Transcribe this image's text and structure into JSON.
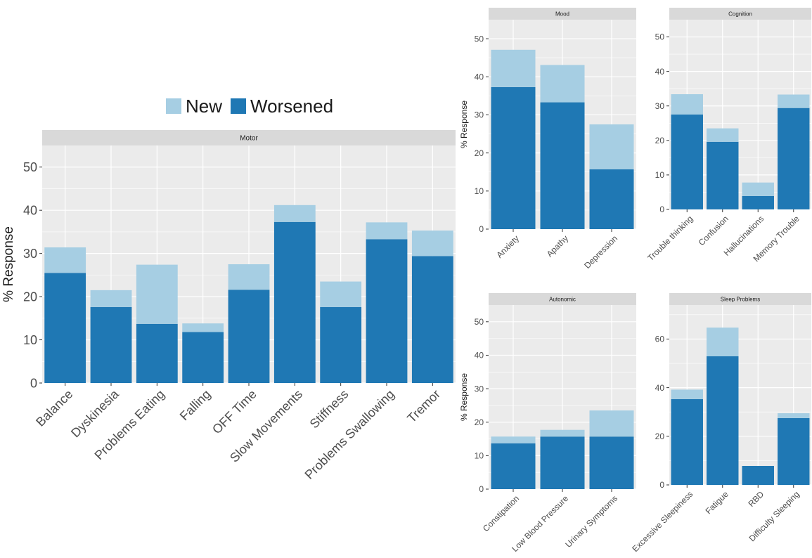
{
  "legend": {
    "items": [
      {
        "label": "New",
        "color": "#a6cee3"
      },
      {
        "label": "Worsened",
        "color": "#1f78b4"
      }
    ],
    "placement": "top-center above Motor panel"
  },
  "colors": {
    "new": "#a6cee3",
    "worsened": "#1f78b4",
    "panel_bg": "#ebebeb",
    "strip_bg": "#d9d9d9",
    "grid": "#ffffff",
    "text": "#4d4d4d"
  },
  "chart_data": [
    {
      "id": "motor",
      "type": "bar",
      "stacked": true,
      "facet_title": "Motor",
      "ylabel": "% Response",
      "ylim": [
        0,
        55
      ],
      "yticks": [
        0,
        10,
        20,
        30,
        40,
        50
      ],
      "grid": true,
      "categories": [
        "Balance",
        "Dyskinesia",
        "Problems Eating",
        "Falling",
        "OFF Time",
        "Slow Movements",
        "Stiffness",
        "Problems Swallowing",
        "Tremor"
      ],
      "series": [
        {
          "name": "Worsened",
          "values": [
            25.5,
            17.6,
            13.7,
            11.8,
            21.6,
            37.3,
            17.6,
            33.3,
            29.4
          ]
        },
        {
          "name": "New",
          "values": [
            5.9,
            3.9,
            13.7,
            2.0,
            5.9,
            3.9,
            5.9,
            3.9,
            5.9
          ]
        }
      ]
    },
    {
      "id": "mood",
      "type": "bar",
      "stacked": true,
      "facet_title": "Mood",
      "ylabel": "% Response",
      "ylim": [
        0,
        55
      ],
      "yticks": [
        0,
        10,
        20,
        30,
        40,
        50
      ],
      "grid": true,
      "categories": [
        "Anxiety",
        "Apathy",
        "Depression"
      ],
      "series": [
        {
          "name": "Worsened",
          "values": [
            37.3,
            33.3,
            15.7
          ]
        },
        {
          "name": "New",
          "values": [
            9.8,
            9.8,
            11.8
          ]
        }
      ]
    },
    {
      "id": "cognition",
      "type": "bar",
      "stacked": true,
      "facet_title": "Cognition",
      "ylabel": "",
      "ylim": [
        0,
        55
      ],
      "yticks": [
        0,
        10,
        20,
        30,
        40,
        50
      ],
      "grid": true,
      "categories": [
        "Trouble thinking",
        "Confusion",
        "Hallucinations",
        "Memory Trouble"
      ],
      "series": [
        {
          "name": "Worsened",
          "values": [
            27.5,
            19.6,
            3.9,
            29.4
          ]
        },
        {
          "name": "New",
          "values": [
            5.9,
            3.9,
            3.9,
            3.9
          ]
        }
      ]
    },
    {
      "id": "autonomic",
      "type": "bar",
      "stacked": true,
      "facet_title": "Autonomic",
      "ylabel": "% Response",
      "ylim": [
        0,
        55
      ],
      "yticks": [
        0,
        10,
        20,
        30,
        40,
        50
      ],
      "grid": true,
      "categories": [
        "Constipation",
        "Low Blood Pressure",
        "Urinary Symptoms"
      ],
      "series": [
        {
          "name": "Worsened",
          "values": [
            13.7,
            15.7,
            15.7
          ]
        },
        {
          "name": "New",
          "values": [
            2.0,
            2.0,
            7.8
          ]
        }
      ]
    },
    {
      "id": "sleep",
      "type": "bar",
      "stacked": true,
      "facet_title": "Sleep Problems",
      "ylabel": "",
      "ylim": [
        0,
        74
      ],
      "yticks": [
        0,
        20,
        40,
        60
      ],
      "grid": true,
      "categories": [
        "Excessive Sleepiness",
        "Fatigue",
        "RBD",
        "Difficulty Sleeping"
      ],
      "series": [
        {
          "name": "Worsened",
          "values": [
            35.3,
            52.9,
            7.8,
            27.5
          ]
        },
        {
          "name": "New",
          "values": [
            3.9,
            11.8,
            0,
            2.0
          ]
        }
      ]
    }
  ]
}
